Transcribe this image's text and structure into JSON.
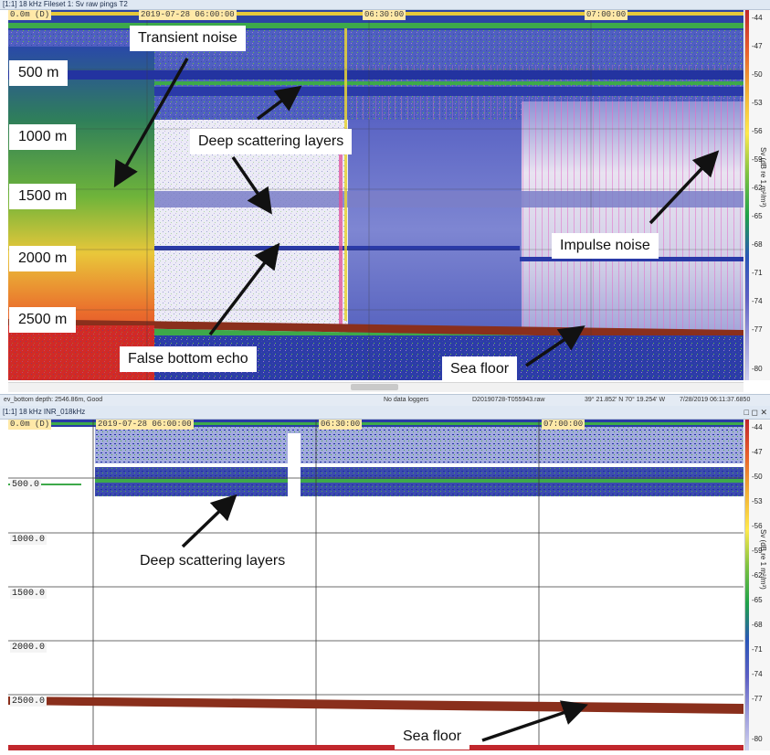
{
  "top_panel": {
    "title": "[1:1] 18 kHz Fileset 1: Sv raw pings T2",
    "time_labels": [
      "2019-07-28 06:00:00",
      "06:30:00",
      "07:00:00"
    ],
    "top_depth_label": "0.0m (D)",
    "depth_labels": [
      "500 m",
      "1000 m",
      "1500 m",
      "2000 m",
      "2500 m"
    ],
    "annotations": {
      "transient_noise": "Transient noise",
      "deep_scattering_layers": "Deep scattering layers",
      "impulse_noise": "Impulse noise",
      "false_bottom_echo": "False bottom echo",
      "sea_floor": "Sea floor"
    },
    "colorbar_ticks": [
      "-44",
      "-47",
      "-50",
      "-53",
      "-56",
      "-59",
      "-62",
      "-65",
      "-68",
      "-71",
      "-74",
      "-77",
      "-80"
    ],
    "colorbar_unit": "Sv (dB re 1 m²/m³)"
  },
  "status_bar": {
    "bottom_depth": "ev_bottom depth: 2546.86m, Good",
    "loggers": "No data loggers",
    "file": "D20190728-T055943.raw",
    "position": "39° 21.852' N 70° 19.254' W",
    "datetime": "7/28/2019 06:11:37.6850"
  },
  "bottom_panel": {
    "title": "[1:1] 18 kHz INR_018kHz",
    "window_buttons": "□ ◻ ✕",
    "top_depth_label": "0.0m (D)",
    "time_labels": [
      "2019-07-28 06:00:00",
      "06:30:00",
      "07:00:00"
    ],
    "depth_labels": [
      "500.0",
      "1000.0",
      "1500.0",
      "2000.0",
      "2500.0"
    ],
    "annotations": {
      "deep_scattering_layers": "Deep scattering layers",
      "sea_floor": "Sea floor"
    },
    "colorbar_ticks": [
      "-44",
      "-47",
      "-50",
      "-53",
      "-56",
      "-59",
      "-62",
      "-65",
      "-68",
      "-71",
      "-74",
      "-77",
      "-80"
    ],
    "colorbar_unit": "Sv (dB re 1 m²/m³)"
  },
  "colors": {
    "low": "#cfd0ef",
    "mid_blue": "#2a56b8",
    "green": "#1fa24a",
    "yellow": "#ffe94d",
    "high_red": "#c1272d",
    "bottom_brown": "#8a2f1c"
  }
}
